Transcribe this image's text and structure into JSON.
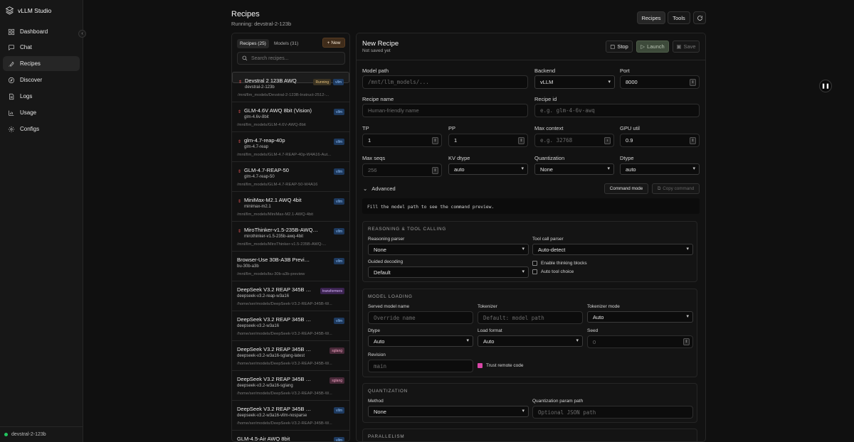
{
  "app": {
    "name": "vLLM Studio",
    "status": "devstral-2-123b"
  },
  "nav": [
    {
      "label": "Dashboard",
      "icon": "dashboard-icon"
    },
    {
      "label": "Chat",
      "icon": "chat-icon"
    },
    {
      "label": "Recipes",
      "icon": "wrench-icon",
      "active": true
    },
    {
      "label": "Discover",
      "icon": "compass-icon"
    },
    {
      "label": "Logs",
      "icon": "file-icon"
    },
    {
      "label": "Usage",
      "icon": "chart-icon"
    },
    {
      "label": "Configs",
      "icon": "gear-icon"
    }
  ],
  "header": {
    "title": "Recipes",
    "subtitle": "Running: devstral-2-123b",
    "buttons": {
      "recipes": "Recipes",
      "tools": "Tools"
    }
  },
  "list": {
    "tabs": [
      "Recipes (25)",
      "Models (31)"
    ],
    "new_label": "New",
    "search_placeholder": "Search recipes...",
    "items": [
      {
        "name": "Devstral 2 123B AWQ",
        "id": "devstral-2-123b",
        "path": "/mnt/llm_models/Devstral-2-123B-Instruct-2512-...",
        "badges": [
          "Running",
          "vllm"
        ],
        "dot": true
      },
      {
        "name": "GLM-4.6V AWQ 8bit (Vision)",
        "id": "glm-4.6v-8bit",
        "path": "/mnt/llm_models/GLM-4.6V-AWQ-8bit",
        "badges": [
          "vllm"
        ],
        "dot": true
      },
      {
        "name": "glm-4.7-reap-40p",
        "id": "glm-4.7-reap",
        "path": "/mnt/llm_models/GLM-4.7-REAP-40p-W4A16-Aut...",
        "badges": [
          "vllm"
        ],
        "dot": true
      },
      {
        "name": "GLM-4.7-REAP-50",
        "id": "glm-4.7-reap-50",
        "path": "/mnt/llm_models/GLM-4.7-REAP-50-W4A16",
        "badges": [
          "vllm"
        ],
        "dot": true
      },
      {
        "name": "MiniMax-M2.1 AWQ 4bit",
        "id": "minimax-m2.1",
        "path": "/mnt/llm_models/MiniMax-M2.1-AWQ-4bit",
        "badges": [
          "vllm"
        ],
        "dot": true
      },
      {
        "name": "MiroThinker-v1.5-235B-AWQ-4bit",
        "id": "mirothinker-v1.5-235b-awq-4bit",
        "path": "/mnt/llm_models/MiroThinker-v1.5-235B-AWQ-...",
        "badges": [
          "vllm"
        ],
        "dot": true
      },
      {
        "name": "Browser-Use 30B-A3B Preview (Visi...",
        "id": "bu-30b-a3b",
        "path": "/mnt/llm_models/bu-30b-a3b-preview",
        "badges": [
          "vllm"
        ],
        "dot": false
      },
      {
        "name": "DeepSeek V3.2 REAP 345B (...",
        "id": "deepseek-v3.2-reap-w3a16",
        "path": "/home/ser/models/DeepSeek-V3.2-REAP-345B-W...",
        "badges": [
          "transformers"
        ],
        "dot": false
      },
      {
        "name": "DeepSeek V3.2 REAP 345B W3A16",
        "id": "deepseek-v3.2-w3a16",
        "path": "/home/ser/models/DeepSeek-V3.2-REAP-345B-W...",
        "badges": [
          "vllm"
        ],
        "dot": false
      },
      {
        "name": "DeepSeek V3.2 REAP 345B W3A1...",
        "id": "deepseek-v3.2-w3a16-sglang-latest",
        "path": "/home/ser/models/DeepSeek-V3.2-REAP-345B-W...",
        "badges": [
          "sglang"
        ],
        "dot": false
      },
      {
        "name": "DeepSeek V3.2 REAP 345B W3A1...",
        "id": "deepseek-v3.2-w3a16-sglang",
        "path": "/home/ser/models/DeepSeek-V3.2-REAP-345B-W...",
        "badges": [
          "sglang"
        ],
        "dot": false
      },
      {
        "name": "DeepSeek V3.2 REAP 345B W3A16 (...",
        "id": "deepseek-v3.2-w3a16-vllm-nosparse",
        "path": "/home/ser/models/DeepSeek-V3.2-REAP-345B-W...",
        "badges": [
          "vllm"
        ],
        "dot": false
      },
      {
        "name": "GLM-4.5-Air AWQ 8bit",
        "id": "",
        "path": "",
        "badges": [
          "vllm"
        ],
        "dot": false
      }
    ]
  },
  "editor": {
    "title": "New Recipe",
    "status": "Not saved yet",
    "actions": {
      "stop": "Stop",
      "launch": "Launch",
      "save": "Save"
    },
    "fields": {
      "model_path": {
        "label": "Model path",
        "placeholder": "/mnt/llm_models/..."
      },
      "backend": {
        "label": "Backend",
        "value": "vLLM"
      },
      "port": {
        "label": "Port",
        "value": "8000"
      },
      "recipe_name": {
        "label": "Recipe name",
        "placeholder": "Human-friendly name"
      },
      "recipe_id": {
        "label": "Recipe id",
        "placeholder": "e.g. glm-4-6v-awq"
      },
      "tp": {
        "label": "TP",
        "value": "1"
      },
      "pp": {
        "label": "PP",
        "value": "1"
      },
      "max_context": {
        "label": "Max context",
        "placeholder": "e.g. 32768"
      },
      "gpu_util": {
        "label": "GPU util",
        "value": "0.9"
      },
      "max_seqs": {
        "label": "Max seqs",
        "placeholder": "256"
      },
      "kv_dtype": {
        "label": "KV dtype",
        "value": "auto"
      },
      "quantization": {
        "label": "Quantization",
        "value": "None"
      },
      "dtype": {
        "label": "Dtype",
        "value": "auto"
      }
    },
    "advanced": {
      "label": "Advanced",
      "command_mode": "Command mode",
      "copy_command": "Copy command",
      "preview": "Fill the model path to see the command preview."
    },
    "reasoning": {
      "title": "REASONING & TOOL CALLING",
      "reasoning_parser": {
        "label": "Reasoning parser",
        "value": "None"
      },
      "tool_call_parser": {
        "label": "Tool call parser",
        "value": "Auto-detect"
      },
      "guided_decoding": {
        "label": "Guided decoding",
        "value": "Default"
      },
      "enable_thinking": "Enable thinking blocks",
      "auto_tool": "Auto tool choice"
    },
    "model_loading": {
      "title": "MODEL LOADING",
      "served_name": {
        "label": "Served model name",
        "placeholder": "Override name"
      },
      "tokenizer": {
        "label": "Tokenizer",
        "placeholder": "Default: model path"
      },
      "tokenizer_mode": {
        "label": "Tokenizer mode",
        "value": "Auto"
      },
      "dtype": {
        "label": "Dtype",
        "value": "Auto"
      },
      "load_format": {
        "label": "Load format",
        "value": "Auto"
      },
      "seed": {
        "label": "Seed",
        "placeholder": "0"
      },
      "revision": {
        "label": "Revision",
        "placeholder": "main"
      },
      "trust_remote": "Trust remote code"
    },
    "quant_section": {
      "title": "QUANTIZATION",
      "method": {
        "label": "Method",
        "value": "None"
      },
      "param_path": {
        "label": "Quantization param path",
        "placeholder": "Optional JSON path"
      }
    },
    "parallelism": {
      "title": "PARALLELISM"
    }
  },
  "colors": {
    "accent_running": "#e5c07b",
    "vllm_badge": "#93c5fd",
    "launch_bg": "#3d4a3a"
  }
}
